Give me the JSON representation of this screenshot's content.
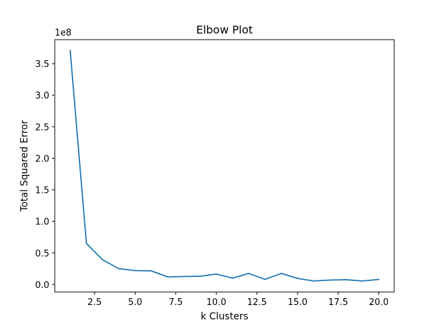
{
  "chart_data": {
    "type": "line",
    "title": "Elbow Plot",
    "xlabel": "k Clusters",
    "ylabel": "Total Squared Error",
    "y_offset_label": "1e8",
    "xlim": [
      0.05,
      20.95
    ],
    "ylim": [
      -0.12,
      3.88
    ],
    "x_ticks": [
      2.5,
      5.0,
      7.5,
      10.0,
      12.5,
      15.0,
      17.5,
      20.0
    ],
    "x_tick_labels": [
      "2.5",
      "5.0",
      "7.5",
      "10.0",
      "12.5",
      "15.0",
      "17.5",
      "20.0"
    ],
    "y_ticks": [
      0.0,
      0.5,
      1.0,
      1.5,
      2.0,
      2.5,
      3.0,
      3.5
    ],
    "y_tick_labels": [
      "0.0",
      "0.5",
      "1.0",
      "1.5",
      "2.0",
      "2.5",
      "3.0",
      "3.5"
    ],
    "grid": false,
    "line_color": "#1f77b4",
    "series": [
      {
        "x": [
          1,
          2,
          3,
          4,
          5,
          6,
          7,
          8,
          9,
          10,
          11,
          12,
          13,
          14,
          15,
          16,
          17,
          18,
          19,
          20
        ],
        "values": [
          3.71,
          0.65,
          0.39,
          0.25,
          0.22,
          0.215,
          0.12,
          0.125,
          0.13,
          0.165,
          0.1,
          0.175,
          0.08,
          0.175,
          0.095,
          0.055,
          0.07,
          0.075,
          0.055,
          0.08
        ]
      }
    ]
  }
}
